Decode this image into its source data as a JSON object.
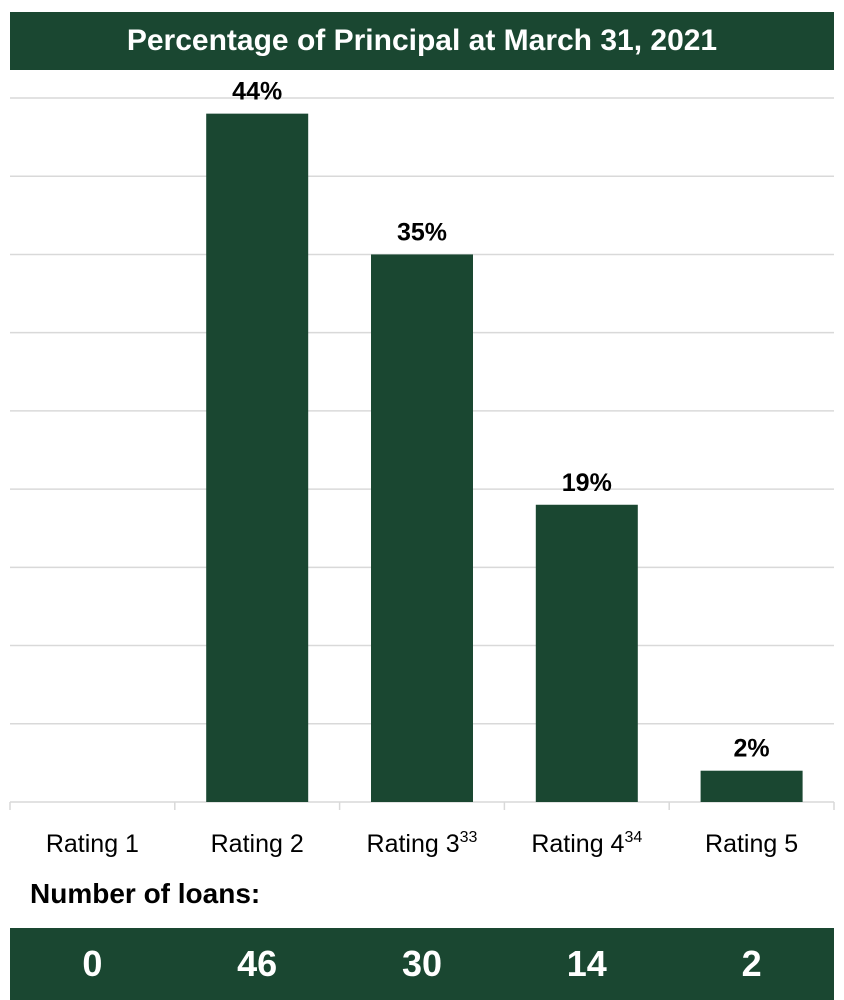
{
  "chart_data": {
    "type": "bar",
    "title": "Percentage of Principal at March 31, 2021",
    "categories": [
      {
        "label": "Rating 1",
        "sup": ""
      },
      {
        "label": "Rating 2",
        "sup": ""
      },
      {
        "label": "Rating 3",
        "sup": "33"
      },
      {
        "label": "Rating 4",
        "sup": "34"
      },
      {
        "label": "Rating 5",
        "sup": ""
      }
    ],
    "values": [
      0,
      44,
      35,
      19,
      2
    ],
    "data_labels": [
      "",
      "44%",
      "35%",
      "19%",
      "2%"
    ],
    "ylim": [
      0,
      45
    ],
    "grid": true,
    "bar_color": "#1a4731"
  },
  "loans": {
    "heading": "Number of loans:",
    "counts": [
      "0",
      "46",
      "30",
      "14",
      "2"
    ]
  }
}
